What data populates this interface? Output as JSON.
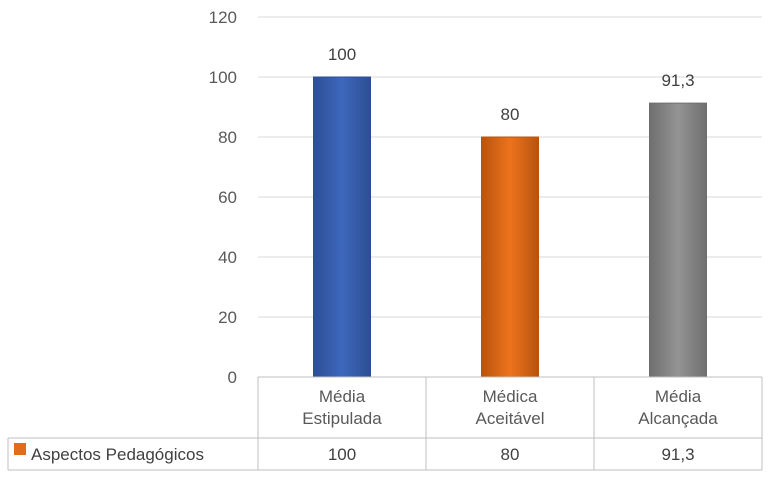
{
  "chart_data": {
    "type": "bar",
    "categories": [
      [
        "Média",
        "Estipulada"
      ],
      [
        "Médica",
        "Aceitável"
      ],
      [
        "Média",
        "Alcançada"
      ]
    ],
    "series": [
      {
        "name": "Aspectos Pedagógicos",
        "values": [
          100,
          80,
          91.3
        ]
      }
    ],
    "data_labels": [
      "100",
      "80",
      "91,3"
    ],
    "ylim": [
      0,
      120
    ],
    "yticks": [
      "0",
      "20",
      "40",
      "60",
      "80",
      "100",
      "120"
    ],
    "grid": true,
    "legend": "data-table-row",
    "bar_colors": [
      "#3a63b4",
      "#e46c19",
      "#8a8a8a"
    ],
    "bar_edge_colors": [
      "#2c4f93",
      "#b7540f",
      "#6f6f6f"
    ],
    "table": {
      "legend_key_color": "#e46c19",
      "row_label": "Aspectos Pedagógicos",
      "cells": [
        "100",
        "80",
        "91,3"
      ]
    }
  }
}
